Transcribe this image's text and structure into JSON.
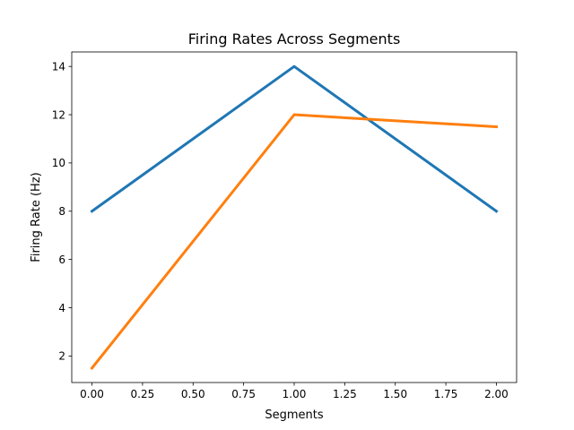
{
  "chart_data": {
    "type": "line",
    "title": "Firing Rates Across Segments",
    "xlabel": "Segments",
    "ylabel": "Firing Rate (Hz)",
    "x": [
      0,
      1,
      2
    ],
    "xlim": [
      -0.1,
      2.1
    ],
    "ylim": [
      0.9,
      14.6
    ],
    "xticks": [
      0.0,
      0.25,
      0.5,
      0.75,
      1.0,
      1.25,
      1.5,
      1.75,
      2.0
    ],
    "xtick_labels": [
      "0.00",
      "0.25",
      "0.50",
      "0.75",
      "1.00",
      "1.25",
      "1.50",
      "1.75",
      "2.00"
    ],
    "yticks": [
      2,
      4,
      6,
      8,
      10,
      12,
      14
    ],
    "ytick_labels": [
      "2",
      "4",
      "6",
      "8",
      "10",
      "12",
      "14"
    ],
    "grid": false,
    "legend": "none",
    "series": [
      {
        "values": [
          8,
          14,
          8
        ],
        "color": "#1f77b4"
      },
      {
        "values": [
          1.5,
          12,
          11.5
        ],
        "color": "#ff7f0e"
      }
    ]
  }
}
